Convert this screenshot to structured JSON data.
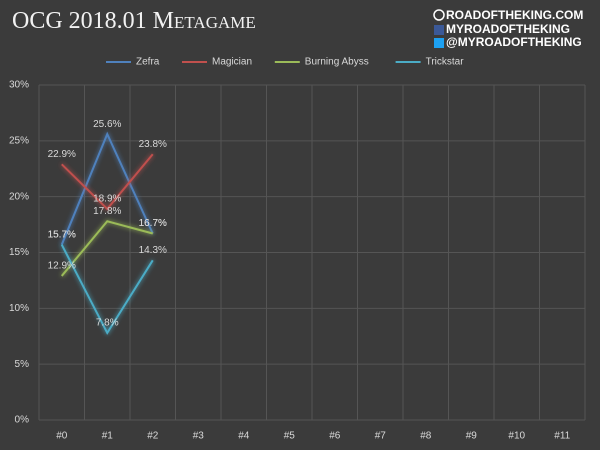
{
  "chart_data": {
    "type": "line",
    "title": "OCG 2018.01 Metagame",
    "branding": [
      "ROADOFTHEKING.COM",
      "MYROADOFTHEKING",
      "@MYROADOFTHEKING"
    ],
    "categories": [
      "#0",
      "#1",
      "#2",
      "#3",
      "#4",
      "#5",
      "#6",
      "#7",
      "#8",
      "#9",
      "#10",
      "#11"
    ],
    "series": [
      {
        "name": "Zefra",
        "color": "#4f81bd",
        "values": [
          15.7,
          25.6,
          16.7,
          null,
          null,
          null,
          null,
          null,
          null,
          null,
          null,
          null
        ],
        "value_labels": [
          "15.7%",
          "25.6%",
          "16.7%",
          null,
          null,
          null,
          null,
          null,
          null,
          null,
          null,
          null
        ]
      },
      {
        "name": "Magician",
        "color": "#c0504d",
        "values": [
          22.9,
          18.9,
          23.8,
          null,
          null,
          null,
          null,
          null,
          null,
          null,
          null,
          null
        ],
        "value_labels": [
          "22.9%",
          "18.9%",
          "23.8%",
          null,
          null,
          null,
          null,
          null,
          null,
          null,
          null,
          null
        ]
      },
      {
        "name": "Burning Abyss",
        "color": "#9bbb59",
        "values": [
          12.9,
          17.8,
          16.7,
          null,
          null,
          null,
          null,
          null,
          null,
          null,
          null,
          null
        ],
        "value_labels": [
          "12.9%",
          "17.8%",
          "16.7%",
          null,
          null,
          null,
          null,
          null,
          null,
          null,
          null,
          null
        ]
      },
      {
        "name": "Trickstar",
        "color": "#4bacc6",
        "values": [
          15.7,
          7.8,
          14.3,
          null,
          null,
          null,
          null,
          null,
          null,
          null,
          null,
          null
        ],
        "value_labels": [
          "15.7%",
          "7.8%",
          "14.3%",
          null,
          null,
          null,
          null,
          null,
          null,
          null,
          null,
          null
        ]
      }
    ],
    "ylim": [
      0,
      30
    ],
    "yticks": [
      {
        "value": 0,
        "label": "0%"
      },
      {
        "value": 5,
        "label": "5%"
      },
      {
        "value": 10,
        "label": "10%"
      },
      {
        "value": 15,
        "label": "15%"
      },
      {
        "value": 20,
        "label": "20%"
      },
      {
        "value": 25,
        "label": "25%"
      },
      {
        "value": 30,
        "label": "30%"
      }
    ],
    "grid": true,
    "legend": "top"
  }
}
